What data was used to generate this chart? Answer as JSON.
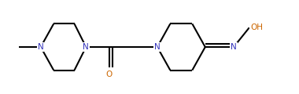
{
  "bg_color": "#ffffff",
  "bond_color": "#000000",
  "N_color": "#3333bb",
  "O_color": "#cc6600",
  "line_width": 1.5,
  "font_size": 7.5,
  "fig_width": 3.8,
  "fig_height": 1.2,
  "dpi": 100,
  "xlim": [
    0.0,
    11.5
  ],
  "ylim": [
    0.0,
    3.5
  ]
}
